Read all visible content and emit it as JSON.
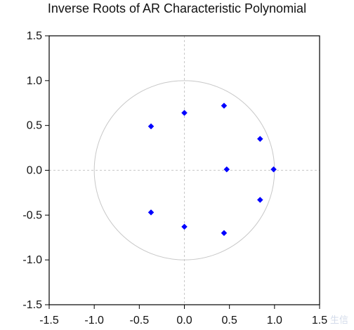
{
  "chart_data": {
    "type": "scatter",
    "title": "Inverse Roots of AR Characteristic Polynomial",
    "xlabel": "",
    "ylabel": "",
    "xlim": [
      -1.5,
      1.5
    ],
    "ylim": [
      -1.5,
      1.5
    ],
    "x_ticks": [
      "-1.5",
      "-1.0",
      "-0.5",
      "0.0",
      "0.5",
      "1.0",
      "1.5"
    ],
    "y_ticks": [
      "1.5",
      "1.0",
      "0.5",
      "0.0",
      "-0.5",
      "-1.0",
      "-1.5"
    ],
    "grid": "dashed zero lines",
    "unit_circle": true,
    "points": [
      {
        "x": -0.37,
        "y": 0.49
      },
      {
        "x": 0.0,
        "y": 0.64
      },
      {
        "x": 0.44,
        "y": 0.72
      },
      {
        "x": 0.84,
        "y": 0.35
      },
      {
        "x": 0.47,
        "y": 0.01
      },
      {
        "x": 0.99,
        "y": 0.01
      },
      {
        "x": 0.84,
        "y": -0.33
      },
      {
        "x": 0.44,
        "y": -0.7
      },
      {
        "x": 0.0,
        "y": -0.63
      },
      {
        "x": -0.37,
        "y": -0.47
      }
    ],
    "marker_color": "#0000ff",
    "circle_color": "#c8c8c8",
    "grid_color": "#c8c8c8"
  },
  "watermark": "生信"
}
